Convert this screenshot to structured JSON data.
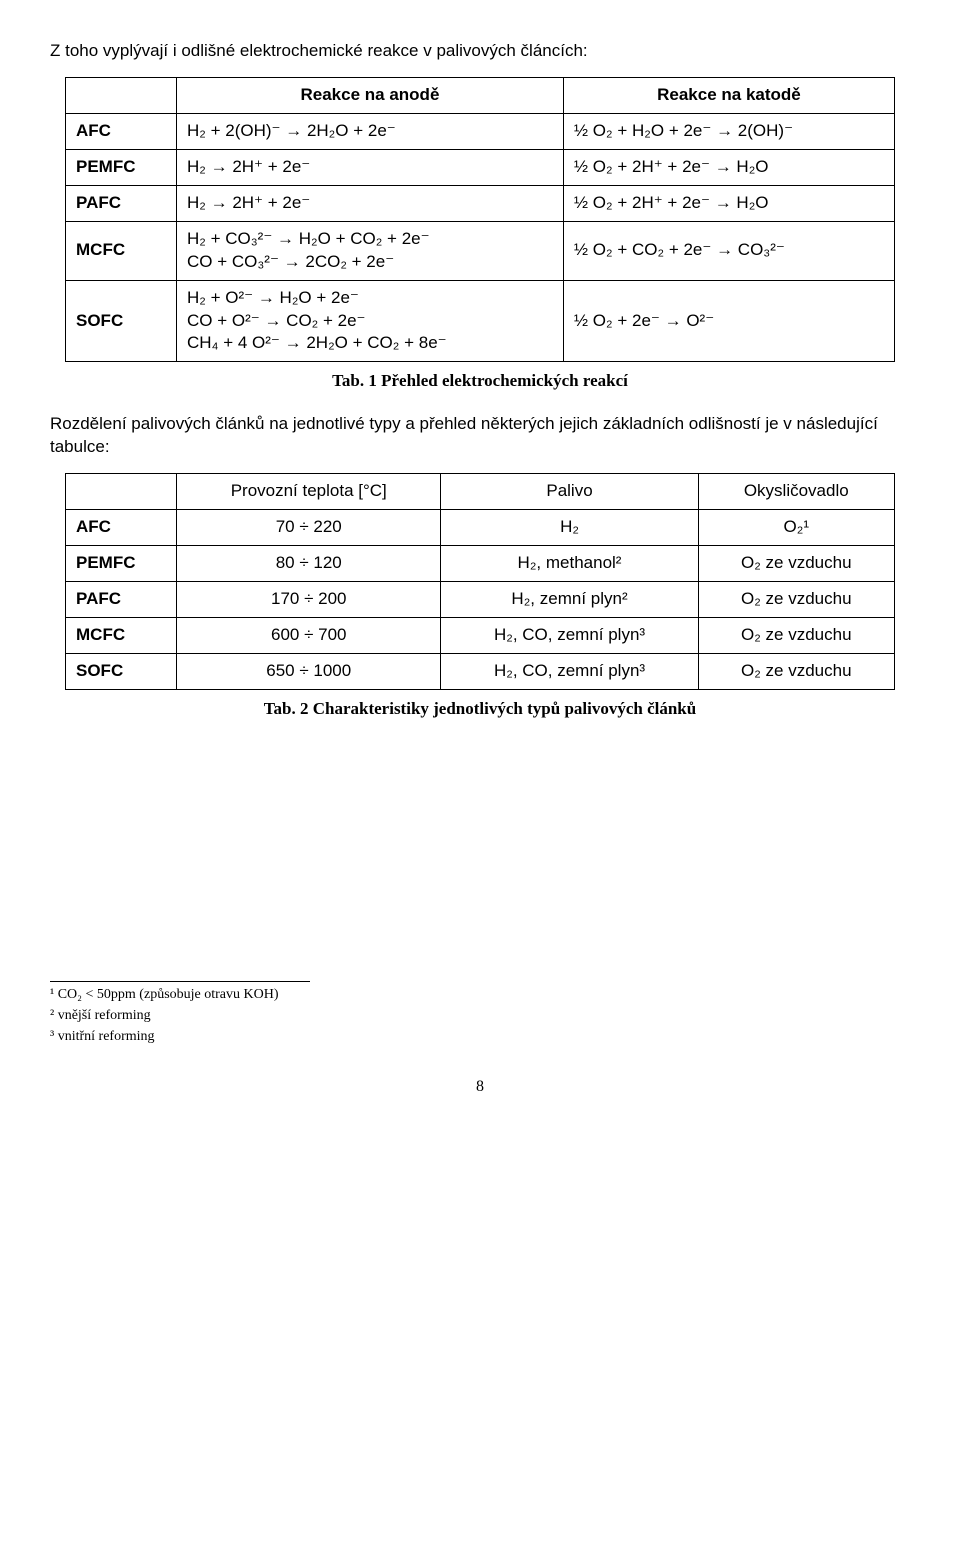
{
  "intro": "Z toho vyplývají i odlišné elektrochemické reakce v palivových článcích:",
  "table1": {
    "headers": {
      "anode": "Reakce na anodě",
      "cathode": "Reakce na katodě"
    },
    "rows": [
      {
        "label": "AFC",
        "anode": "H₂ + 2(OH)⁻ → 2H₂O + 2e⁻",
        "cathode": "½ O₂ + H₂O + 2e⁻ → 2(OH)⁻"
      },
      {
        "label": "PEMFC",
        "anode": "H₂ → 2H⁺ + 2e⁻",
        "cathode": "½ O₂ + 2H⁺ + 2e⁻ → H₂O"
      },
      {
        "label": "PAFC",
        "anode": "H₂ → 2H⁺ + 2e⁻",
        "cathode": "½ O₂ + 2H⁺ + 2e⁻ → H₂O"
      },
      {
        "label": "MCFC",
        "anode": "H₂ + CO₃²⁻ → H₂O + CO₂ + 2e⁻\nCO + CO₃²⁻ → 2CO₂ + 2e⁻",
        "cathode": "½ O₂ + CO₂ + 2e⁻ → CO₃²⁻"
      },
      {
        "label": "SOFC",
        "anode": "H₂ + O²⁻ → H₂O + 2e⁻\nCO + O²⁻ → CO₂ + 2e⁻\nCH₄ + 4 O²⁻ → 2H₂O + CO₂ + 8e⁻",
        "cathode": "½ O₂ + 2e⁻ → O²⁻"
      }
    ],
    "caption": "Tab. 1 Přehled elektrochemických reakcí"
  },
  "para2": "Rozdělení palivových článků na jednotlivé typy a přehled některých jejich základních odlišností je v následující tabulce:",
  "table2": {
    "headers": {
      "temp": "Provozní teplota [°C]",
      "fuel": "Palivo",
      "oxid": "Okysličovadlo"
    },
    "rows": [
      {
        "label": "AFC",
        "temp": "70 ÷ 220",
        "fuel": "H₂",
        "oxid": "O₂¹"
      },
      {
        "label": "PEMFC",
        "temp": "80 ÷ 120",
        "fuel": "H₂, methanol²",
        "oxid": "O₂ ze vzduchu"
      },
      {
        "label": "PAFC",
        "temp": "170 ÷ 200",
        "fuel": "H₂, zemní plyn²",
        "oxid": "O₂ ze vzduchu"
      },
      {
        "label": "MCFC",
        "temp": "600 ÷ 700",
        "fuel": "H₂, CO, zemní plyn³",
        "oxid": "O₂ ze vzduchu"
      },
      {
        "label": "SOFC",
        "temp": "650 ÷ 1000",
        "fuel": "H₂, CO, zemní plyn³",
        "oxid": "O₂ ze vzduchu"
      }
    ],
    "caption": "Tab. 2 Charakteristiky jednotlivých typů palivových článků"
  },
  "footnotes": {
    "fn1": "¹ CO₂ < 50ppm (způsobuje otravu KOH)",
    "fn2": "² vnější reforming",
    "fn3": "³ vnitřní reforming"
  },
  "pagenum": "8"
}
